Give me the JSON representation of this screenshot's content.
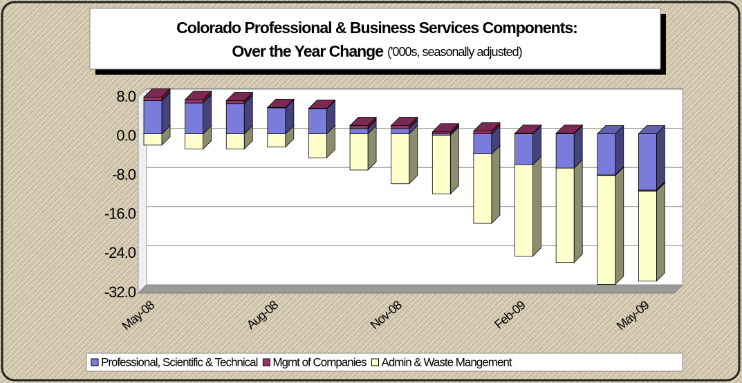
{
  "chart_data": {
    "type": "stacked_bar_3d",
    "title": "Colorado Professional & Business Services Components:",
    "title_line2": "Over the Year Change",
    "title_note": "('000s, seasonally adjusted)",
    "categories": [
      "May-08",
      null,
      null,
      "Aug-08",
      null,
      null,
      "Nov-08",
      null,
      null,
      "Feb-09",
      null,
      null,
      "May-09"
    ],
    "series": [
      {
        "name": "Professional, Scientific & Technical",
        "color": "#7b7bdc",
        "values": [
          6.8,
          6.3,
          6.2,
          5.3,
          5.1,
          1.1,
          1.1,
          -0.3,
          -4.1,
          -6.3,
          -7.0,
          -8.4,
          -11.5
        ]
      },
      {
        "name": "Mgmt of Companies",
        "color": "#993366",
        "values": [
          0.7,
          0.7,
          0.6,
          0.1,
          0.1,
          0.6,
          0.6,
          0.4,
          0.6,
          0.1,
          0.1,
          -0.1,
          -0.2
        ]
      },
      {
        "name": "Admin & Waste Mangement",
        "color": "#ffffcc",
        "values": [
          -2.3,
          -3.1,
          -3.1,
          -2.7,
          -4.9,
          -7.4,
          -10.2,
          -12.0,
          -14.2,
          -18.7,
          -19.3,
          -22.3,
          -18.4
        ]
      }
    ],
    "ylim": [
      -32,
      8
    ],
    "yticks": [
      {
        "value": 8,
        "label": "8.0"
      },
      {
        "value": 0,
        "label": "0.0"
      },
      {
        "value": -8,
        "label": "-8.0"
      },
      {
        "value": -16,
        "label": "-16.0"
      },
      {
        "value": -24,
        "label": "-24.0"
      },
      {
        "value": -32,
        "label": "-32.0"
      }
    ],
    "grid": true,
    "legend": "bottom"
  }
}
